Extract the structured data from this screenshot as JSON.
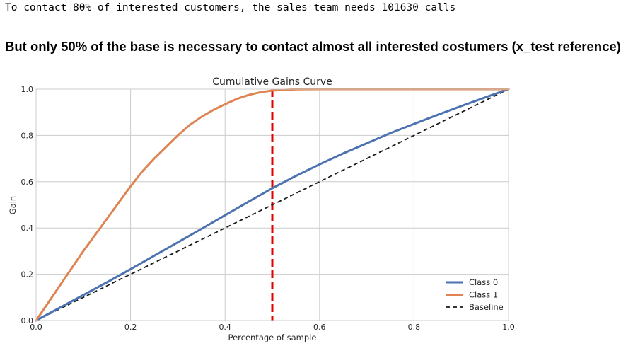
{
  "console_output": "To contact 80% of interested customers, the sales team needs 101630 calls",
  "headline": "But only 50% of the base is necessary to contact almost all interested costumers (x_test reference)",
  "chart_data": {
    "type": "line",
    "title": "Cumulative Gains Curve",
    "xlabel": "Percentage of sample",
    "ylabel": "Gain",
    "xlim": [
      0,
      1
    ],
    "ylim": [
      0,
      1
    ],
    "x_ticks": [
      "0.0",
      "0.2",
      "0.4",
      "0.6",
      "0.8",
      "1.0"
    ],
    "y_ticks": [
      "0.0",
      "0.2",
      "0.4",
      "0.6",
      "0.8",
      "1.0"
    ],
    "grid": true,
    "legend_position": "lower-right",
    "reference_line": {
      "x": 0.5,
      "color": "#e00000",
      "style": "dashed"
    },
    "series": [
      {
        "name": "Class 0",
        "color": "#4c72b0",
        "x": [
          0,
          0.05,
          0.1,
          0.15,
          0.2,
          0.25,
          0.3,
          0.35,
          0.4,
          0.45,
          0.5,
          0.55,
          0.6,
          0.65,
          0.7,
          0.75,
          0.8,
          0.85,
          0.9,
          0.95,
          1.0
        ],
        "y": [
          0,
          0.055,
          0.11,
          0.165,
          0.222,
          0.28,
          0.338,
          0.396,
          0.455,
          0.514,
          0.572,
          0.625,
          0.675,
          0.722,
          0.766,
          0.81,
          0.85,
          0.889,
          0.927,
          0.964,
          1.0
        ]
      },
      {
        "name": "Class 1",
        "color": "#dd8452",
        "x": [
          0,
          0.025,
          0.05,
          0.075,
          0.1,
          0.125,
          0.15,
          0.175,
          0.2,
          0.225,
          0.25,
          0.275,
          0.3,
          0.325,
          0.35,
          0.375,
          0.4,
          0.425,
          0.45,
          0.475,
          0.5,
          0.525,
          0.55,
          0.6,
          0.65,
          0.7,
          0.8,
          0.9,
          1.0
        ],
        "y": [
          0,
          0.075,
          0.15,
          0.225,
          0.3,
          0.37,
          0.44,
          0.51,
          0.58,
          0.645,
          0.7,
          0.75,
          0.8,
          0.845,
          0.88,
          0.91,
          0.935,
          0.958,
          0.975,
          0.987,
          0.994,
          0.997,
          0.999,
          1.0,
          1.0,
          1.0,
          1.0,
          1.0,
          1.0
        ]
      },
      {
        "name": "Baseline",
        "color": "#1a1a1a",
        "style": "dashed",
        "x": [
          0,
          1
        ],
        "y": [
          0,
          1
        ]
      }
    ]
  }
}
